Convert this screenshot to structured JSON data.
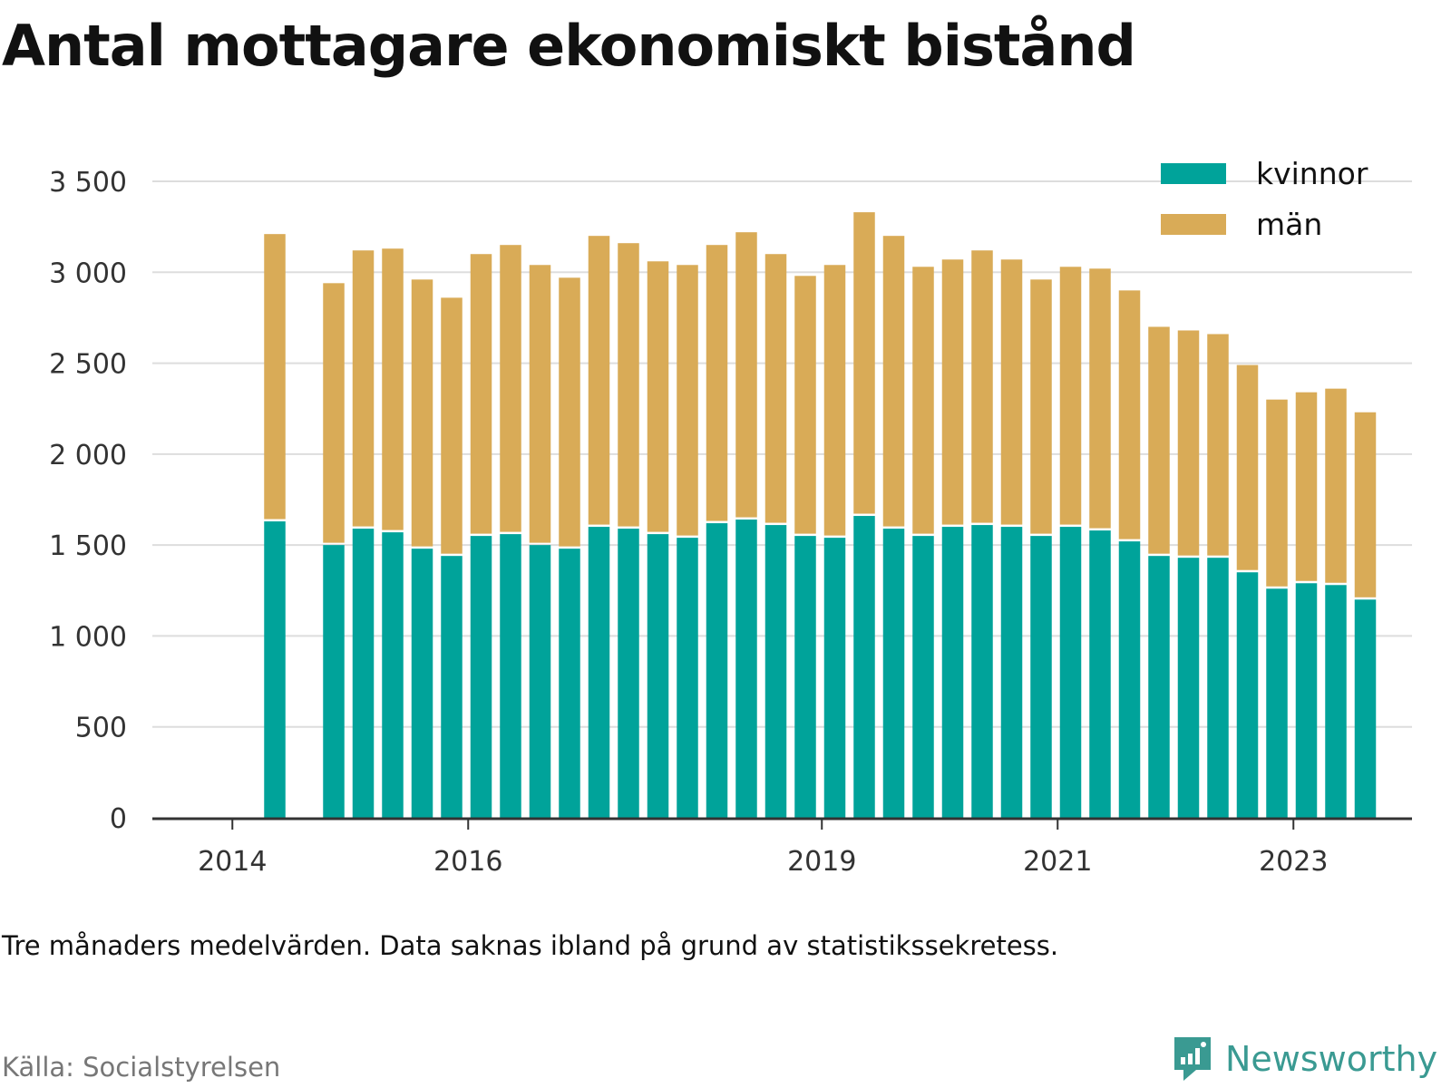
{
  "title": "Antal mottagare ekonomiskt bistånd",
  "note": "Tre månaders medelvärden. Data saknas ibland på grund av statistikssekretess.",
  "source": "Källa: Socialstyrelsen",
  "brand": {
    "name": "Newsworthy",
    "icon": "newsworthy-logo-icon",
    "color": "#3a9a92"
  },
  "chart_data": {
    "type": "bar",
    "stacked": true,
    "title": "Antal mottagare ekonomiskt bistånd",
    "xlabel": "",
    "ylabel": "",
    "ylim": [
      0,
      3500
    ],
    "yticks": [
      0,
      500,
      1000,
      1500,
      2000,
      2500,
      3000,
      3500
    ],
    "ytick_labels": [
      "0",
      "500",
      "1 000",
      "1 500",
      "2 000",
      "2 500",
      "3 000",
      "3 500"
    ],
    "xtick_labels": [
      "2014",
      "2016",
      "2019",
      "2021",
      "2023"
    ],
    "xtick_slots": [
      0,
      8,
      20,
      28,
      36
    ],
    "grid": true,
    "legend_position": "top-right",
    "bar_slots": [
      1,
      3,
      4,
      5,
      6,
      7,
      8,
      9,
      10,
      11,
      12,
      13,
      14,
      15,
      16,
      17,
      18,
      19,
      20,
      21,
      22,
      23,
      24,
      25,
      26,
      27,
      28,
      29,
      30,
      31,
      32,
      33,
      34,
      35,
      36,
      37,
      38
    ],
    "series": [
      {
        "name": "kvinnor",
        "color": "#00a39a",
        "values": [
          1630,
          1500,
          1590,
          1570,
          1480,
          1440,
          1550,
          1560,
          1500,
          1480,
          1600,
          1590,
          1560,
          1540,
          1620,
          1640,
          1610,
          1550,
          1540,
          1660,
          1590,
          1550,
          1600,
          1610,
          1600,
          1550,
          1600,
          1580,
          1520,
          1440,
          1430,
          1430,
          1350,
          1260,
          1290,
          1280,
          1200
        ]
      },
      {
        "name": "män",
        "color": "#d9ab57",
        "values": [
          1580,
          1440,
          1530,
          1560,
          1480,
          1420,
          1550,
          1590,
          1540,
          1490,
          1600,
          1570,
          1500,
          1500,
          1530,
          1580,
          1490,
          1430,
          1500,
          1670,
          1610,
          1480,
          1470,
          1510,
          1470,
          1410,
          1430,
          1440,
          1380,
          1260,
          1250,
          1230,
          1140,
          1040,
          1050,
          1080,
          1030
        ]
      }
    ]
  }
}
